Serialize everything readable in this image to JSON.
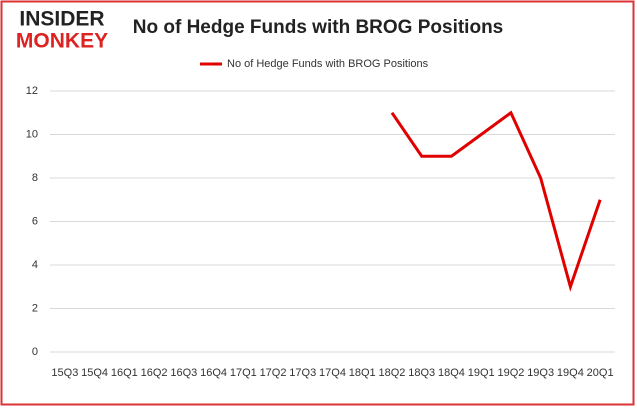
{
  "logo": {
    "line1": "INSIDER",
    "line2": "MONKEY"
  },
  "chart_data": {
    "type": "line",
    "title": "No of Hedge Funds with BROG Positions",
    "categories": [
      "15Q3",
      "15Q4",
      "16Q1",
      "16Q2",
      "16Q3",
      "16Q4",
      "17Q1",
      "17Q2",
      "17Q3",
      "17Q4",
      "18Q1",
      "18Q2",
      "18Q3",
      "18Q4",
      "19Q1",
      "19Q2",
      "19Q3",
      "19Q4",
      "20Q1"
    ],
    "series": [
      {
        "name": "No of Hedge Funds with BROG Positions",
        "color": "#e00000",
        "values": [
          null,
          null,
          null,
          null,
          null,
          null,
          null,
          null,
          null,
          null,
          null,
          11,
          9,
          9,
          10,
          11,
          8,
          3,
          7
        ]
      }
    ],
    "ylim": [
      0,
      12
    ],
    "yticks": [
      0,
      2,
      4,
      6,
      8,
      10,
      12
    ],
    "grid": true,
    "legend": "top"
  }
}
